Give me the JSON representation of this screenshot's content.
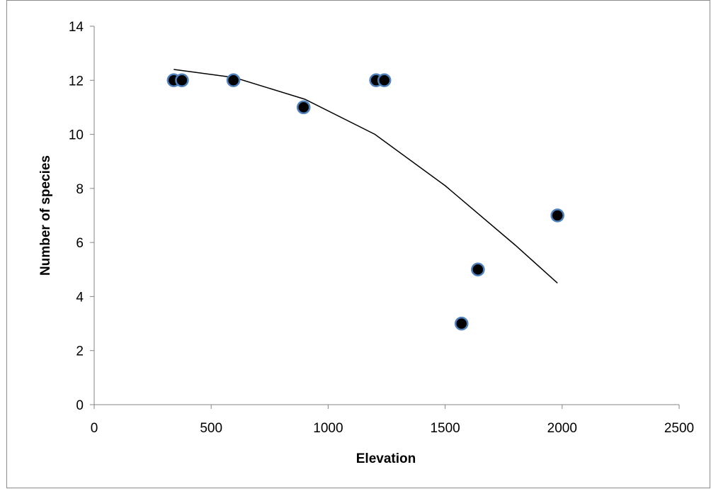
{
  "chart_data": {
    "type": "scatter",
    "title": "",
    "xlabel": "Elevation",
    "ylabel": "Number of species",
    "xlim": [
      0,
      2500
    ],
    "ylim": [
      0,
      14
    ],
    "x_ticks": [
      0,
      500,
      1000,
      1500,
      2000,
      2500
    ],
    "y_ticks": [
      0,
      2,
      4,
      6,
      8,
      10,
      12,
      14
    ],
    "grid": false,
    "legend": "none",
    "series": [
      {
        "points": [
          {
            "x": 340,
            "y": 12
          },
          {
            "x": 375,
            "y": 12
          },
          {
            "x": 595,
            "y": 12
          },
          {
            "x": 895,
            "y": 11
          },
          {
            "x": 1205,
            "y": 12
          },
          {
            "x": 1240,
            "y": 12
          },
          {
            "x": 1570,
            "y": 3
          },
          {
            "x": 1640,
            "y": 5
          },
          {
            "x": 1980,
            "y": 7
          }
        ],
        "marker_fill": "#000000",
        "marker_edge": "#4f81bd"
      }
    ],
    "trendline": {
      "type": "polynomial",
      "x_range": [
        340,
        1980
      ],
      "points": [
        {
          "x": 340,
          "y": 12.4
        },
        {
          "x": 600,
          "y": 12.1
        },
        {
          "x": 900,
          "y": 11.3
        },
        {
          "x": 1200,
          "y": 10.0
        },
        {
          "x": 1500,
          "y": 8.1
        },
        {
          "x": 1800,
          "y": 5.9
        },
        {
          "x": 1980,
          "y": 4.5
        }
      ],
      "color": "#000000"
    }
  }
}
